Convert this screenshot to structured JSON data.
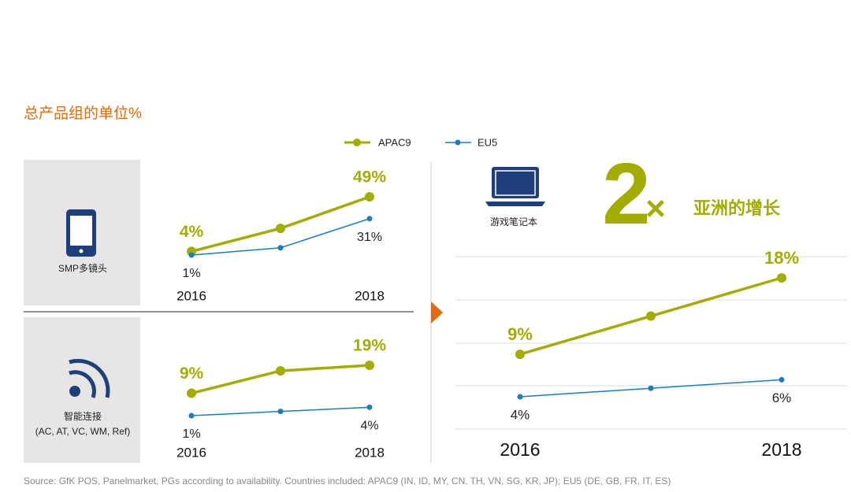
{
  "header": {
    "title": "总产品组的单位%"
  },
  "highlight": {
    "factor": "2",
    "times": "×",
    "text": "亚洲的增长"
  },
  "footer": {
    "source": "Source: GfK POS, Panelmarket, PGs according to availability. Countries included: APAC9 (IN, ID, MY, CN, TH, VN, SG, KR, JP); EU5 (DE, GB, FR, IT, ES)"
  },
  "chart_data": [
    {
      "type": "line",
      "label": "SMP多镜头",
      "categories": [
        "2016",
        null,
        "2018"
      ],
      "series": [
        {
          "name": "APAC9",
          "color": "#a2ad00",
          "values": [
            4,
            23,
            49
          ],
          "value_labels": [
            "4%",
            null,
            "49%"
          ]
        },
        {
          "name": "EU5",
          "color": "#1a7dc0",
          "values": [
            1,
            7,
            31
          ],
          "value_labels": [
            "1%",
            null,
            "31%"
          ]
        }
      ]
    },
    {
      "type": "line",
      "label": "智能连接",
      "sublabel": "(AC, AT, VC, WM, Ref)",
      "categories": [
        "2016",
        null,
        "2018"
      ],
      "series": [
        {
          "name": "APAC9",
          "color": "#a2ad00",
          "values": [
            9,
            17,
            19
          ],
          "value_labels": [
            "9%",
            null,
            "19%"
          ]
        },
        {
          "name": "EU5",
          "color": "#1a7dc0",
          "values": [
            1,
            2.5,
            4
          ],
          "value_labels": [
            "1%",
            null,
            "4%"
          ]
        }
      ]
    },
    {
      "type": "line",
      "label": "游戏笔记本",
      "categories": [
        "2016",
        null,
        "2018"
      ],
      "series": [
        {
          "name": "APAC9",
          "color": "#a2ad00",
          "values": [
            9,
            13.5,
            18
          ],
          "value_labels": [
            "9%",
            null,
            "18%"
          ]
        },
        {
          "name": "EU5",
          "color": "#1a7dc0",
          "values": [
            4,
            5,
            6
          ],
          "value_labels": [
            "4%",
            null,
            "6%"
          ]
        }
      ]
    }
  ]
}
